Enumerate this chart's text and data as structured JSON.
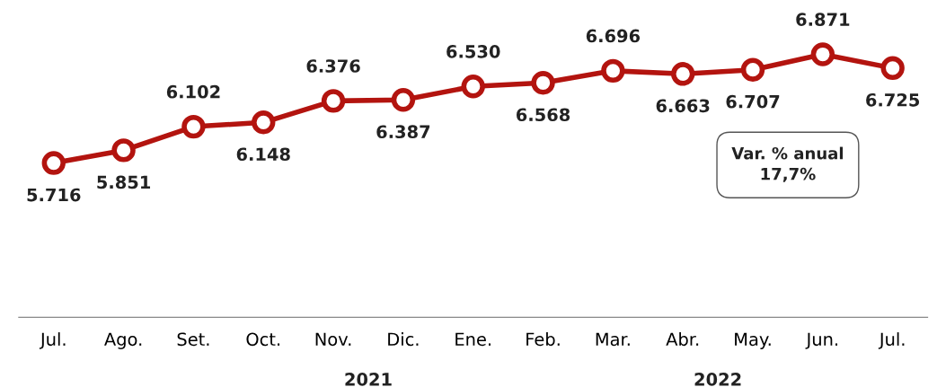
{
  "chart_data": {
    "type": "line",
    "categories": [
      "Jul.",
      "Ago.",
      "Set.",
      "Oct.",
      "Nov.",
      "Dic.",
      "Ene.",
      "Feb.",
      "Mar.",
      "Abr.",
      "May.",
      "Jun.",
      "Jul."
    ],
    "series": [
      {
        "color": "#b3140f",
        "values": [
          5.716,
          5.851,
          6.102,
          6.148,
          6.376,
          6.387,
          6.53,
          6.568,
          6.696,
          6.663,
          6.707,
          6.871,
          6.725
        ],
        "value_labels": [
          "5.716",
          "5.851",
          "6.102",
          "6.148",
          "6.376",
          "6.387",
          "6.530",
          "6.568",
          "6.696",
          "6.663",
          "6.707",
          "6.871",
          "6.725"
        ]
      }
    ],
    "tick_labels": "x",
    "marker": "circle",
    "line_style": "solid",
    "grid": false,
    "legend": false,
    "annotations": [
      "2021",
      "2022",
      "Var. % anual\n17,7%"
    ]
  }
}
